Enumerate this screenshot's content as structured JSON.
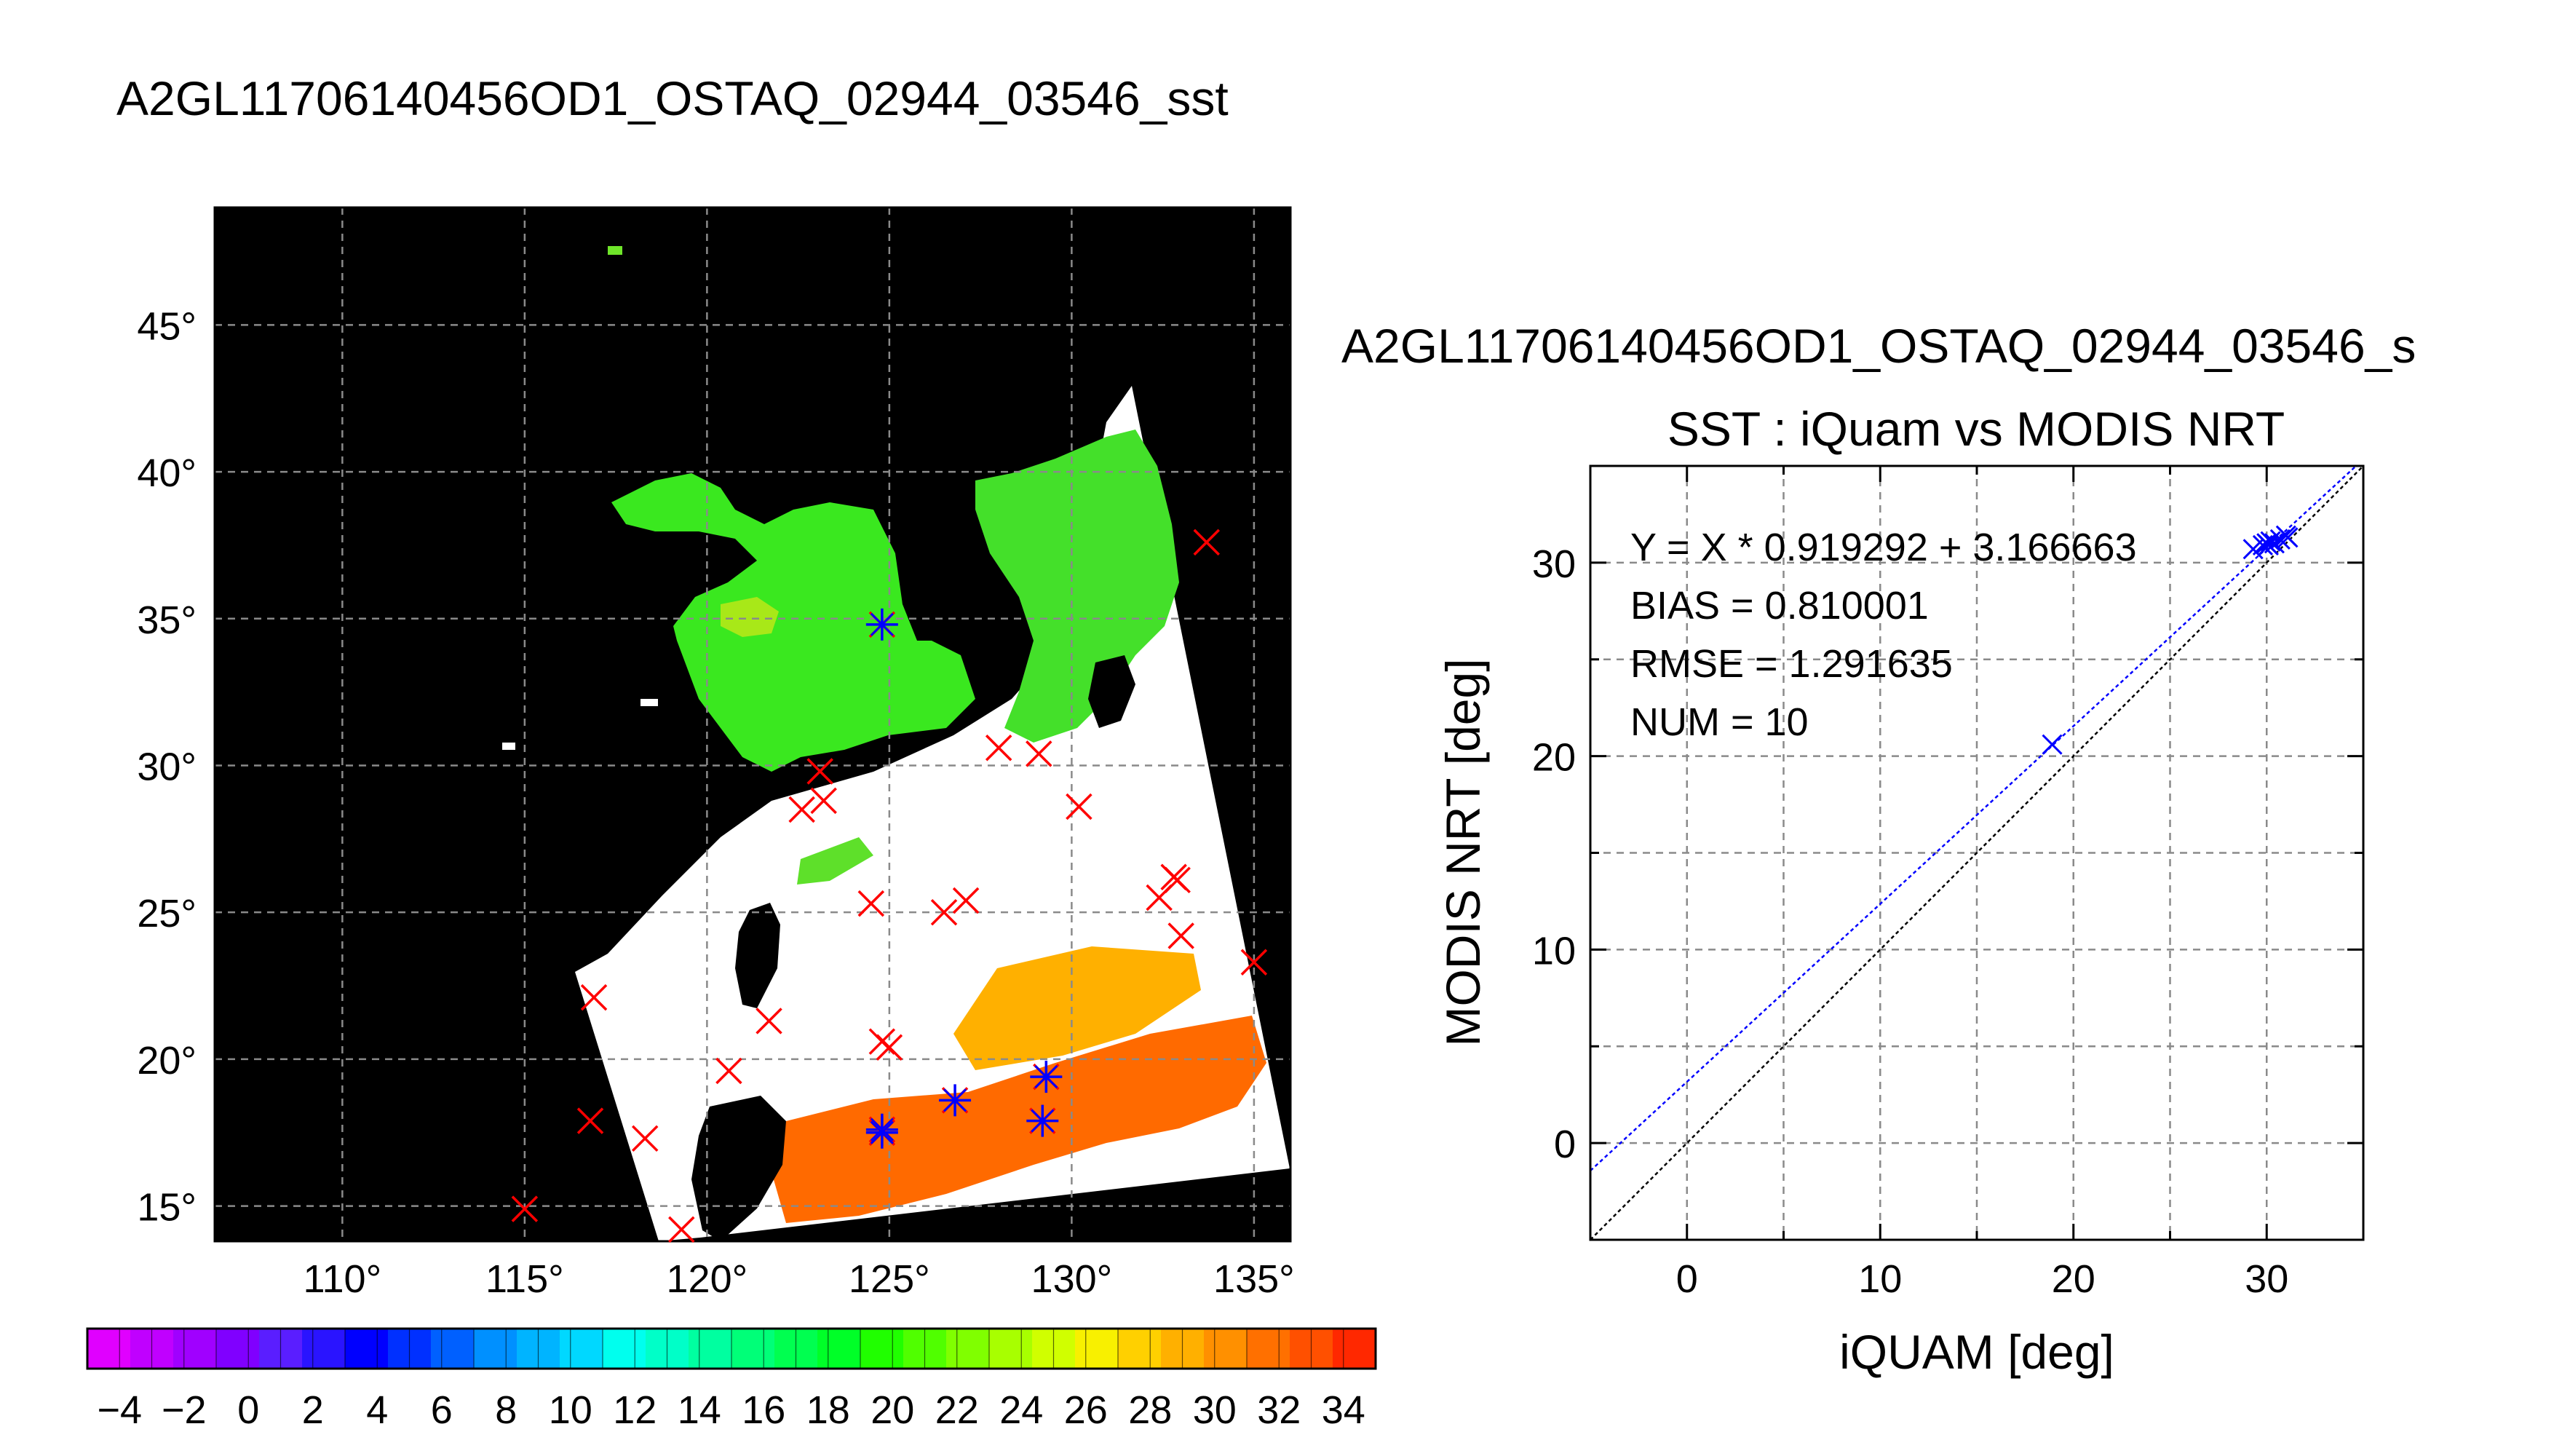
{
  "left_panel": {
    "title": "A2GL11706140456OD1_OSTAQ_02944_03546_sst",
    "map": {
      "lon_range": [
        106.5,
        136
      ],
      "lat_range": [
        13.8,
        49
      ],
      "lon_ticks": [
        110,
        115,
        120,
        125,
        130,
        135
      ],
      "lat_ticks": [
        15,
        20,
        25,
        30,
        35,
        40,
        45
      ],
      "degree_symbol": "°",
      "grid": true,
      "background": "#000000",
      "land_or_cloud": "#ffffff",
      "red_marker_color": "#ff0000",
      "blue_marker_color": "#0000ff",
      "red_markers": [
        [
          133.7,
          37.6
        ],
        [
          128.0,
          30.6
        ],
        [
          129.1,
          30.4
        ],
        [
          123.1,
          29.8
        ],
        [
          122.6,
          28.5
        ],
        [
          123.2,
          28.8
        ],
        [
          130.2,
          28.6
        ],
        [
          124.5,
          25.3
        ],
        [
          126.5,
          25.0
        ],
        [
          127.1,
          25.4
        ],
        [
          132.4,
          25.5
        ],
        [
          132.8,
          26.2
        ],
        [
          132.9,
          26.1
        ],
        [
          133.0,
          24.2
        ],
        [
          135.0,
          23.3
        ],
        [
          116.9,
          22.1
        ],
        [
          121.7,
          21.3
        ],
        [
          124.8,
          20.6
        ],
        [
          125.0,
          20.4
        ],
        [
          120.6,
          19.6
        ],
        [
          116.8,
          17.9
        ],
        [
          118.3,
          17.3
        ],
        [
          115.0,
          14.9
        ],
        [
          119.3,
          14.2
        ]
      ],
      "matched_markers": [
        [
          124.8,
          34.8
        ],
        [
          124.8,
          17.6
        ],
        [
          124.8,
          17.5
        ],
        [
          126.8,
          18.6
        ],
        [
          129.3,
          19.4
        ],
        [
          129.2,
          17.9
        ]
      ]
    },
    "colorbar": {
      "min": -5,
      "max": 35,
      "tick_labels": [
        "−4",
        "−2",
        "0",
        "2",
        "4",
        "6",
        "8",
        "10",
        "12",
        "14",
        "16",
        "18",
        "20",
        "22",
        "24",
        "26",
        "28",
        "30",
        "32",
        "34"
      ],
      "colors": [
        "#e000ff",
        "#c000ff",
        "#a000ff",
        "#8000ff",
        "#5a1eff",
        "#2a14ff",
        "#0000ff",
        "#0030ff",
        "#0060ff",
        "#0090ff",
        "#00b4ff",
        "#00d8ff",
        "#00ffee",
        "#00ffc8",
        "#00ffa0",
        "#00ff78",
        "#00ff50",
        "#00ff28",
        "#20ff00",
        "#50ff00",
        "#80ff00",
        "#a8ff00",
        "#d0ff00",
        "#f8f000",
        "#ffd000",
        "#ffb000",
        "#ff9000",
        "#ff7000",
        "#ff5000",
        "#ff2800"
      ]
    }
  },
  "right_panel": {
    "title": "A2GL11706140456OD1_OSTAQ_02944_03546_s",
    "subtitle": "SST : iQuam vs MODIS NRT",
    "stats": [
      "Y = X * 0.919292 + 3.166663",
      "BIAS = 0.810001",
      "RMSE = 1.291635",
      "NUM = 10"
    ]
  },
  "chart_data": {
    "type": "scatter",
    "xlabel": "iQUAM [deg]",
    "ylabel": "MODIS NRT [deg]",
    "xlim": [
      -5,
      35
    ],
    "ylim": [
      -5,
      35
    ],
    "x_ticks": [
      0,
      10,
      20,
      30
    ],
    "y_ticks": [
      0,
      10,
      20,
      30
    ],
    "grid": true,
    "series": [
      {
        "color": "#0000ff",
        "points": [
          [
            18.9,
            20.6
          ],
          [
            29.3,
            30.7
          ],
          [
            29.8,
            30.9
          ],
          [
            30.0,
            31.0
          ],
          [
            30.1,
            30.9
          ],
          [
            30.2,
            31.1
          ],
          [
            30.4,
            31.0
          ],
          [
            30.7,
            31.2
          ],
          [
            31.0,
            31.4
          ],
          [
            31.1,
            31.3
          ]
        ]
      }
    ],
    "lines": [
      {
        "kind": "identity",
        "color": "#000000",
        "slope": 1,
        "intercept": 0
      },
      {
        "kind": "fit",
        "color": "#0000ff",
        "slope": 0.919292,
        "intercept": 3.166663
      }
    ]
  }
}
